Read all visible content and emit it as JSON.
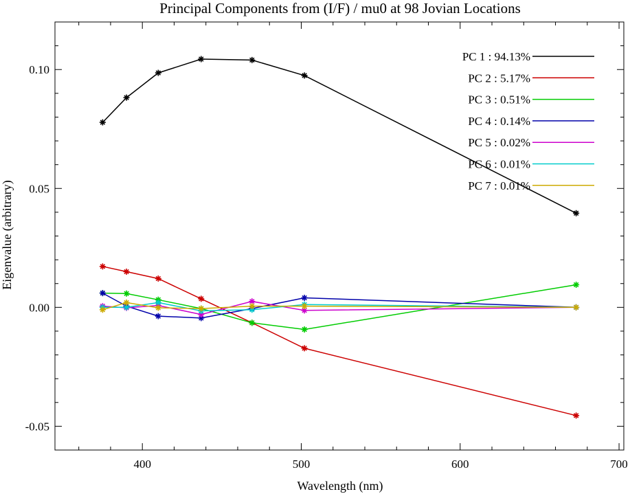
{
  "chart_data": {
    "type": "line",
    "title": "Principal Components from (I/F) / mu0 at 98 Jovian Locations",
    "xlabel": "Wavelength (nm)",
    "ylabel": "Eigenvalue (arbitrary)",
    "xlim": [
      345,
      703
    ],
    "ylim": [
      -0.06,
      0.12
    ],
    "xticks": [
      400,
      500,
      600,
      700
    ],
    "xtick_labels": [
      "400",
      "500",
      "600",
      "700"
    ],
    "yticks": [
      -0.05,
      0.0,
      0.05,
      0.1
    ],
    "ytick_labels": [
      "-0.05",
      "0.00",
      "0.05",
      "0.10"
    ],
    "grid": false,
    "legend_position": "top-right",
    "x": [
      375,
      390,
      410,
      437,
      469,
      502,
      673
    ],
    "series": [
      {
        "name": "PC 1",
        "legend_label": "PC 1 : 94.13%",
        "color": "#000000",
        "values": [
          0.0778,
          0.0882,
          0.0986,
          0.1044,
          0.104,
          0.0975,
          0.0396
        ]
      },
      {
        "name": "PC 2",
        "legend_label": "PC 2 :  5.17%",
        "color": "#cc0000",
        "values": [
          0.0172,
          0.015,
          0.0121,
          0.0036,
          -0.0065,
          -0.0172,
          -0.0455
        ]
      },
      {
        "name": "PC 3",
        "legend_label": "PC 3 :  0.51%",
        "color": "#00cc00",
        "values": [
          0.006,
          0.0058,
          0.0032,
          -0.0005,
          -0.0065,
          -0.0093,
          0.0095
        ]
      },
      {
        "name": "PC 4",
        "legend_label": "PC 4 :  0.14%",
        "color": "#0000aa",
        "values": [
          0.006,
          0.0005,
          -0.0037,
          -0.0045,
          -0.0005,
          0.004,
          0.0
        ]
      },
      {
        "name": "PC 5",
        "legend_label": "PC 5 :  0.02%",
        "color": "#cc00cc",
        "values": [
          0.0005,
          -0.0002,
          0.0008,
          -0.003,
          0.0025,
          -0.0013,
          0.0
        ]
      },
      {
        "name": "PC 6",
        "legend_label": "PC 6 :  0.01%",
        "color": "#00cccc",
        "values": [
          0.0,
          0.0,
          0.002,
          -0.0015,
          -0.001,
          0.0012,
          0.0
        ]
      },
      {
        "name": "PC 7",
        "legend_label": "PC 7 :  0.01%",
        "color": "#ccaa00",
        "values": [
          -0.001,
          0.002,
          -0.0002,
          -0.0005,
          0.0005,
          0.0005,
          0.0
        ]
      }
    ]
  }
}
